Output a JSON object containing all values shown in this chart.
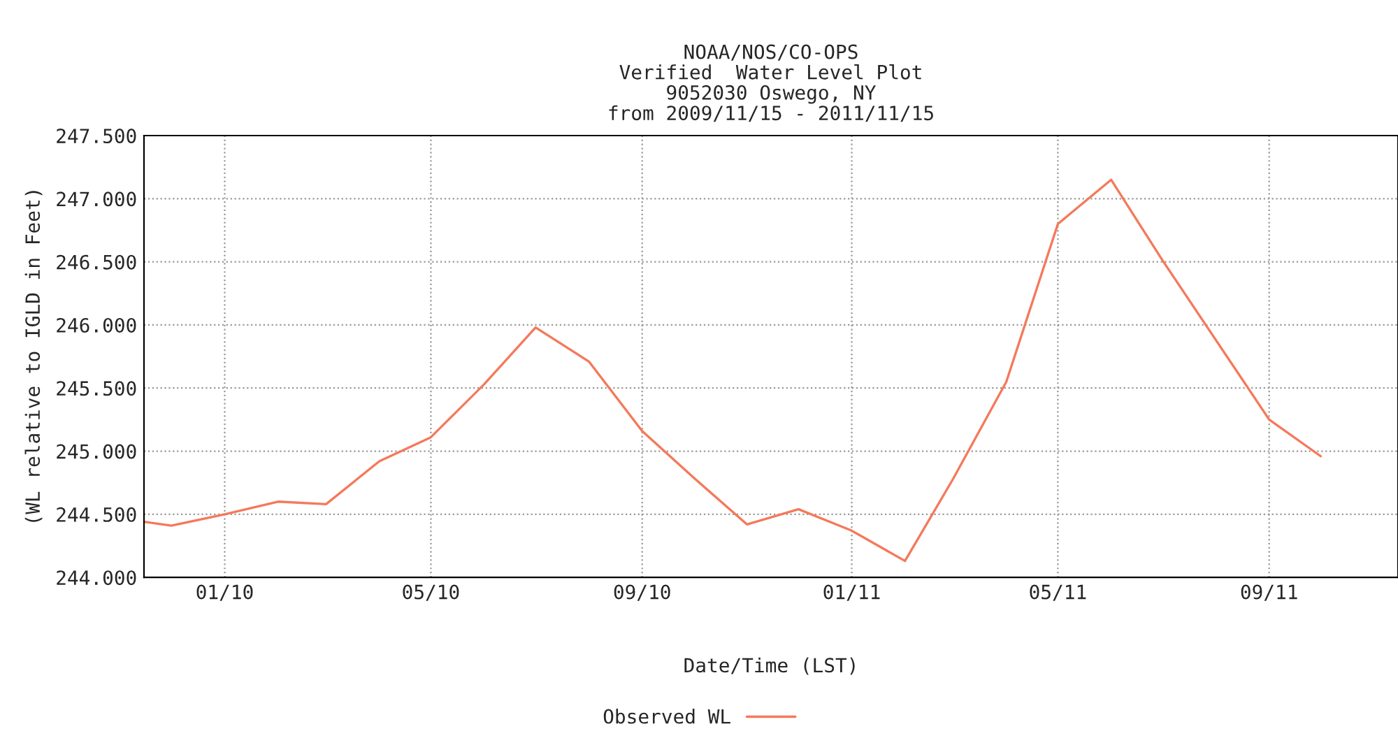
{
  "chart_data": {
    "type": "line",
    "title": "NOAA/NOS/CO-OPS\nVerified  Water Level Plot\n9052030 Oswego, NY\nfrom 2009/11/15 - 2011/11/15",
    "xlabel": "Date/Time (LST)",
    "ylabel": "(WL relative to IGLD in Feet)",
    "x": [
      "2009-11-15",
      "2009-12-01",
      "2010-01-01",
      "2010-02-01",
      "2010-03-01",
      "2010-04-01",
      "2010-05-01",
      "2010-06-01",
      "2010-07-01",
      "2010-08-01",
      "2010-09-01",
      "2010-10-01",
      "2010-11-01",
      "2010-12-01",
      "2011-01-01",
      "2011-02-01",
      "2011-03-01",
      "2011-04-01",
      "2011-05-01",
      "2011-06-01",
      "2011-07-01",
      "2011-08-01",
      "2011-09-01",
      "2011-10-01"
    ],
    "series": [
      {
        "name": "Observed WL",
        "color": "#f4795b",
        "values": [
          244.44,
          244.41,
          244.5,
          244.6,
          244.58,
          244.92,
          245.11,
          245.53,
          245.98,
          245.71,
          245.16,
          244.79,
          244.42,
          244.54,
          244.37,
          244.13,
          244.78,
          245.55,
          246.8,
          247.15,
          246.51,
          245.88,
          245.25,
          244.96
        ]
      }
    ],
    "xlim": [
      "2009-11-15",
      "2011-11-15"
    ],
    "xticks": [
      {
        "value": "2010-01-01",
        "label": "01/10"
      },
      {
        "value": "2010-05-01",
        "label": "05/10"
      },
      {
        "value": "2010-09-01",
        "label": "09/10"
      },
      {
        "value": "2011-01-01",
        "label": "01/11"
      },
      {
        "value": "2011-05-01",
        "label": "05/11"
      },
      {
        "value": "2011-09-01",
        "label": "09/11"
      }
    ],
    "ylim": [
      244.0,
      247.5
    ],
    "yticks": [
      {
        "value": 244.0,
        "label": "244.000"
      },
      {
        "value": 244.5,
        "label": "244.500"
      },
      {
        "value": 245.0,
        "label": "245.000"
      },
      {
        "value": 245.5,
        "label": "245.500"
      },
      {
        "value": 246.0,
        "label": "246.000"
      },
      {
        "value": 246.5,
        "label": "246.500"
      },
      {
        "value": 247.0,
        "label": "247.000"
      },
      {
        "value": 247.5,
        "label": "247.500"
      }
    ],
    "grid": true,
    "legend": "bottom",
    "marker": "none",
    "line_style": "solid"
  }
}
